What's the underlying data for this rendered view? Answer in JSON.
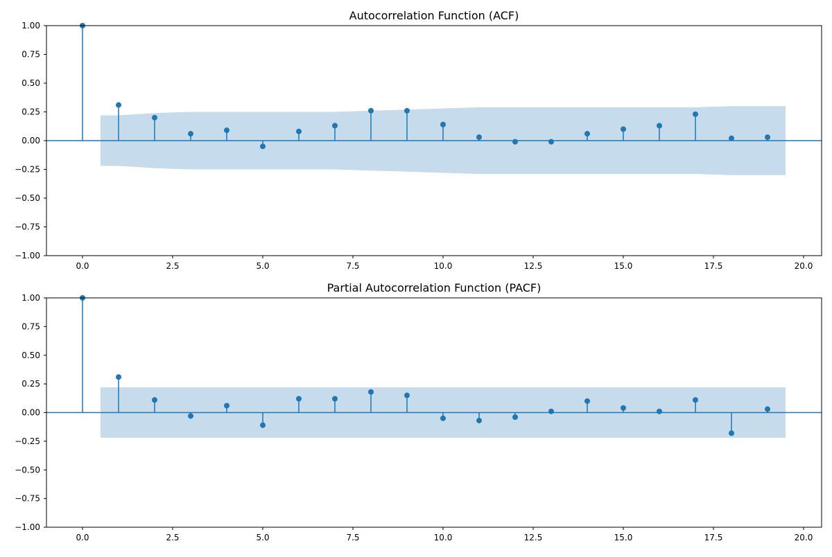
{
  "chart_data": [
    {
      "type": "stem",
      "title": "Autocorrelation Function (ACF)",
      "xlabel": "",
      "ylabel": "",
      "xlim": [
        -1,
        20.5
      ],
      "ylim": [
        -1.0,
        1.0
      ],
      "x_ticks": [
        0.0,
        2.5,
        5.0,
        7.5,
        10.0,
        12.5,
        15.0,
        17.5,
        20.0
      ],
      "x_tick_labels": [
        "0.0",
        "2.5",
        "5.0",
        "7.5",
        "10.0",
        "12.5",
        "15.0",
        "17.5",
        "20.0"
      ],
      "y_ticks": [
        -1.0,
        -0.75,
        -0.5,
        -0.25,
        0.0,
        0.25,
        0.5,
        0.75,
        1.0
      ],
      "y_tick_labels": [
        "−1.00",
        "−0.75",
        "−0.50",
        "−0.25",
        "0.00",
        "0.25",
        "0.50",
        "0.75",
        "1.00"
      ],
      "lags": [
        0,
        1,
        2,
        3,
        4,
        5,
        6,
        7,
        8,
        9,
        10,
        11,
        12,
        13,
        14,
        15,
        16,
        17,
        18,
        19
      ],
      "values": [
        1.0,
        0.31,
        0.2,
        0.06,
        0.09,
        -0.05,
        0.08,
        0.13,
        0.26,
        0.26,
        0.14,
        0.03,
        -0.01,
        -0.01,
        0.06,
        0.1,
        0.13,
        0.23,
        0.02,
        0.03
      ],
      "confidence_band": {
        "x": [
          0.5,
          1,
          2,
          3,
          4,
          5,
          6,
          7,
          8,
          9,
          10,
          11,
          12,
          13,
          14,
          15,
          16,
          17,
          18,
          19,
          19.5
        ],
        "upper": [
          0.22,
          0.22,
          0.24,
          0.25,
          0.25,
          0.25,
          0.25,
          0.25,
          0.26,
          0.27,
          0.28,
          0.29,
          0.29,
          0.29,
          0.29,
          0.29,
          0.29,
          0.29,
          0.3,
          0.3,
          0.3
        ]
      },
      "grid": false,
      "color": "#1f77b4",
      "band_color": "#c6dbec"
    },
    {
      "type": "stem",
      "title": "Partial Autocorrelation Function (PACF)",
      "xlabel": "",
      "ylabel": "",
      "xlim": [
        -1,
        20.5
      ],
      "ylim": [
        -1.0,
        1.0
      ],
      "x_ticks": [
        0.0,
        2.5,
        5.0,
        7.5,
        10.0,
        12.5,
        15.0,
        17.5,
        20.0
      ],
      "x_tick_labels": [
        "0.0",
        "2.5",
        "5.0",
        "7.5",
        "10.0",
        "12.5",
        "15.0",
        "17.5",
        "20.0"
      ],
      "y_ticks": [
        -1.0,
        -0.75,
        -0.5,
        -0.25,
        0.0,
        0.25,
        0.5,
        0.75,
        1.0
      ],
      "y_tick_labels": [
        "−1.00",
        "−0.75",
        "−0.50",
        "−0.25",
        "0.00",
        "0.25",
        "0.50",
        "0.75",
        "1.00"
      ],
      "lags": [
        0,
        1,
        2,
        3,
        4,
        5,
        6,
        7,
        8,
        9,
        10,
        11,
        12,
        13,
        14,
        15,
        16,
        17,
        18,
        19
      ],
      "values": [
        1.0,
        0.31,
        0.11,
        -0.03,
        0.06,
        -0.11,
        0.12,
        0.12,
        0.18,
        0.15,
        -0.05,
        -0.07,
        -0.04,
        0.01,
        0.1,
        0.04,
        0.01,
        0.11,
        -0.18,
        0.03
      ],
      "confidence_band": {
        "x": [
          0.5,
          19.5
        ],
        "upper": [
          0.22,
          0.22
        ]
      },
      "grid": false,
      "color": "#1f77b4",
      "band_color": "#c6dbec"
    }
  ]
}
